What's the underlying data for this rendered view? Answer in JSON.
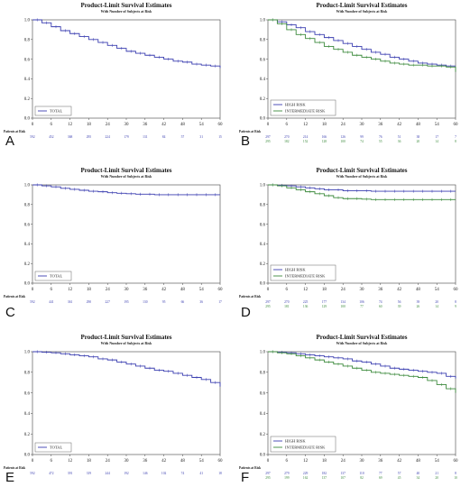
{
  "chart_data": [
    {
      "panel_label": "A",
      "type": "line",
      "title": "Product-Limit Survival Estimates",
      "subtitle": "With Number of Subjects at Risk",
      "x_ticks": [
        "0",
        "6",
        "12",
        "18",
        "24",
        "30",
        "36",
        "42",
        "48",
        "54",
        "60"
      ],
      "y_ticks": [
        "0.0",
        "0.2",
        "0.4",
        "0.6",
        "0.8",
        "1.0"
      ],
      "xlim": [
        0,
        60
      ],
      "ylim": [
        0,
        1
      ],
      "legend": "bottom-left",
      "series": [
        {
          "name": "TOTAL",
          "color": "#3b3fb0",
          "x": [
            0,
            3,
            6,
            9,
            12,
            15,
            18,
            21,
            24,
            27,
            30,
            33,
            36,
            39,
            42,
            45,
            48,
            51,
            54,
            57,
            60
          ],
          "y": [
            1.0,
            0.97,
            0.93,
            0.89,
            0.86,
            0.83,
            0.8,
            0.77,
            0.74,
            0.71,
            0.68,
            0.66,
            0.64,
            0.62,
            0.6,
            0.58,
            0.57,
            0.55,
            0.54,
            0.53,
            0.51
          ]
        }
      ],
      "risk_header": "Patients at Risk",
      "risk_rows": [
        {
          "color": "#3b3fb0",
          "values": [
            "592",
            "452",
            "368",
            "295",
            "224",
            "179",
            "131",
            "84",
            "57",
            "31",
            "15"
          ]
        }
      ]
    },
    {
      "panel_label": "B",
      "type": "line",
      "title": "Product-Limit Survival Estimates",
      "subtitle": "With Number of Subjects at Risk",
      "x_ticks": [
        "0",
        "6",
        "12",
        "18",
        "24",
        "30",
        "36",
        "42",
        "48",
        "54",
        "60"
      ],
      "y_ticks": [
        "0.0",
        "0.2",
        "0.4",
        "0.6",
        "0.8",
        "1.0"
      ],
      "xlim": [
        0,
        60
      ],
      "ylim": [
        0,
        1
      ],
      "legend": "bottom-left",
      "series": [
        {
          "name": "HIGH RISK",
          "color": "#3b3fb0",
          "x": [
            0,
            3,
            6,
            9,
            12,
            15,
            18,
            21,
            24,
            27,
            30,
            33,
            36,
            39,
            42,
            45,
            48,
            51,
            54,
            57,
            60
          ],
          "y": [
            1.0,
            0.98,
            0.95,
            0.92,
            0.88,
            0.85,
            0.82,
            0.79,
            0.76,
            0.73,
            0.7,
            0.67,
            0.65,
            0.62,
            0.6,
            0.58,
            0.56,
            0.55,
            0.54,
            0.53,
            0.53
          ]
        },
        {
          "name": "INTERMEDIATE RISK",
          "color": "#3c8a3c",
          "x": [
            0,
            3,
            6,
            9,
            12,
            15,
            18,
            21,
            24,
            27,
            30,
            33,
            36,
            39,
            42,
            45,
            48,
            51,
            54,
            57,
            60
          ],
          "y": [
            1.0,
            0.96,
            0.9,
            0.85,
            0.81,
            0.77,
            0.73,
            0.7,
            0.67,
            0.64,
            0.62,
            0.6,
            0.58,
            0.56,
            0.55,
            0.54,
            0.54,
            0.53,
            0.53,
            0.52,
            0.47
          ]
        }
      ],
      "risk_header": "Patients at Risk",
      "risk_rows": [
        {
          "color": "#3b3fb0",
          "values": [
            "297",
            "270",
            "214",
            "166",
            "126",
            "99",
            "76",
            "51",
            "38",
            "17",
            "7"
          ]
        },
        {
          "color": "#3c8a3c",
          "values": [
            "295",
            "182",
            "152",
            "128",
            "100",
            "74",
            "55",
            "36",
            "20",
            "14",
            "8"
          ]
        }
      ]
    },
    {
      "panel_label": "C",
      "type": "line",
      "title": "Product-Limit Survival Estimates",
      "subtitle": "With Number of Subjects at Risk",
      "x_ticks": [
        "0",
        "6",
        "12",
        "18",
        "24",
        "30",
        "36",
        "42",
        "48",
        "54",
        "60"
      ],
      "y_ticks": [
        "0.0",
        "0.2",
        "0.4",
        "0.6",
        "0.8",
        "1.0"
      ],
      "xlim": [
        0,
        60
      ],
      "ylim": [
        0,
        1
      ],
      "legend": "bottom-left",
      "series": [
        {
          "name": "TOTAL",
          "color": "#3b3fb0",
          "x": [
            0,
            3,
            6,
            9,
            12,
            15,
            18,
            21,
            24,
            27,
            30,
            33,
            36,
            39,
            42,
            45,
            48,
            51,
            54,
            57,
            60
          ],
          "y": [
            1.0,
            0.99,
            0.98,
            0.965,
            0.955,
            0.945,
            0.935,
            0.93,
            0.92,
            0.915,
            0.91,
            0.905,
            0.905,
            0.9,
            0.9,
            0.9,
            0.9,
            0.9,
            0.9,
            0.9,
            0.9
          ]
        }
      ],
      "risk_header": "Patients at Risk",
      "risk_rows": [
        {
          "color": "#3b3fb0",
          "values": [
            "592",
            "441",
            "361",
            "290",
            "227",
            "195",
            "130",
            "95",
            "66",
            "36",
            "17"
          ]
        }
      ]
    },
    {
      "panel_label": "D",
      "type": "line",
      "title": "Product-Limit Survival Estimates",
      "subtitle": "With Number of Subjects at Risk",
      "x_ticks": [
        "0",
        "6",
        "12",
        "18",
        "24",
        "30",
        "36",
        "42",
        "48",
        "54",
        "60"
      ],
      "y_ticks": [
        "0.0",
        "0.2",
        "0.4",
        "0.6",
        "0.8",
        "1.0"
      ],
      "xlim": [
        0,
        60
      ],
      "ylim": [
        0,
        1
      ],
      "legend": "bottom-left",
      "series": [
        {
          "name": "HIGH RISK",
          "color": "#3b3fb0",
          "x": [
            0,
            3,
            6,
            9,
            12,
            15,
            18,
            21,
            24,
            27,
            30,
            33,
            36,
            39,
            42,
            45,
            48,
            51,
            54,
            57,
            60
          ],
          "y": [
            1.0,
            0.995,
            0.99,
            0.98,
            0.97,
            0.96,
            0.95,
            0.95,
            0.94,
            0.94,
            0.94,
            0.935,
            0.935,
            0.935,
            0.935,
            0.935,
            0.935,
            0.935,
            0.935,
            0.935,
            0.935
          ]
        },
        {
          "name": "INTERMEDIATE RISK",
          "color": "#3c8a3c",
          "x": [
            0,
            3,
            6,
            9,
            12,
            15,
            18,
            21,
            24,
            27,
            30,
            33,
            36,
            39,
            42,
            45,
            48,
            51,
            54,
            57,
            60
          ],
          "y": [
            1.0,
            0.99,
            0.97,
            0.95,
            0.93,
            0.91,
            0.89,
            0.87,
            0.86,
            0.86,
            0.855,
            0.85,
            0.85,
            0.85,
            0.85,
            0.85,
            0.85,
            0.85,
            0.85,
            0.85,
            0.85
          ]
        }
      ],
      "risk_header": "Patients at Risk",
      "risk_rows": [
        {
          "color": "#3b3fb0",
          "values": [
            "297",
            "270",
            "225",
            "177",
            "134",
            "106",
            "74",
            "56",
            "39",
            "20",
            "8"
          ]
        },
        {
          "color": "#3c8a3c",
          "values": [
            "295",
            "181",
            "136",
            "129",
            "100",
            "77",
            "60",
            "39",
            "26",
            "14",
            "9"
          ]
        }
      ]
    },
    {
      "panel_label": "E",
      "type": "line",
      "title": "Product-Limit Survival Estimates",
      "subtitle": "With Number of Subjects at Risk",
      "x_ticks": [
        "0",
        "6",
        "12",
        "18",
        "24",
        "30",
        "36",
        "42",
        "48",
        "54",
        "60"
      ],
      "y_ticks": [
        "0.0",
        "0.2",
        "0.4",
        "0.6",
        "0.8",
        "1.0"
      ],
      "xlim": [
        0,
        60
      ],
      "ylim": [
        0,
        1
      ],
      "legend": "bottom-left",
      "series": [
        {
          "name": "TOTAL",
          "color": "#3b3fb0",
          "x": [
            0,
            3,
            6,
            9,
            12,
            15,
            18,
            21,
            24,
            27,
            30,
            33,
            36,
            39,
            42,
            45,
            48,
            51,
            54,
            57,
            60
          ],
          "y": [
            1.0,
            0.995,
            0.99,
            0.98,
            0.97,
            0.96,
            0.95,
            0.93,
            0.92,
            0.9,
            0.88,
            0.86,
            0.84,
            0.82,
            0.81,
            0.79,
            0.77,
            0.75,
            0.73,
            0.7,
            0.66
          ]
        }
      ],
      "risk_header": "Patients at Risk",
      "risk_rows": [
        {
          "color": "#3b3fb0",
          "values": [
            "592",
            "472",
            "391",
            "319",
            "244",
            "192",
            "146",
            "102",
            "74",
            "41",
            "18"
          ]
        }
      ]
    },
    {
      "panel_label": "F",
      "type": "line",
      "title": "Product-Limit Survival Estimates",
      "subtitle": "With Number of Subjects at Risk",
      "x_ticks": [
        "0",
        "6",
        "12",
        "18",
        "24",
        "30",
        "36",
        "42",
        "48",
        "54",
        "60"
      ],
      "y_ticks": [
        "0.0",
        "0.2",
        "0.4",
        "0.6",
        "0.8",
        "1.0"
      ],
      "xlim": [
        0,
        60
      ],
      "ylim": [
        0,
        1
      ],
      "legend": "bottom-left",
      "series": [
        {
          "name": "HIGH RISK",
          "color": "#3b3fb0",
          "x": [
            0,
            3,
            6,
            9,
            12,
            15,
            18,
            21,
            24,
            27,
            30,
            33,
            36,
            39,
            42,
            45,
            48,
            51,
            54,
            57,
            60
          ],
          "y": [
            1.0,
            0.995,
            0.99,
            0.98,
            0.97,
            0.96,
            0.95,
            0.94,
            0.93,
            0.91,
            0.9,
            0.88,
            0.86,
            0.84,
            0.83,
            0.82,
            0.81,
            0.8,
            0.79,
            0.76,
            0.74
          ]
        },
        {
          "name": "INTERMEDIATE RISK",
          "color": "#3c8a3c",
          "x": [
            0,
            3,
            6,
            9,
            12,
            15,
            18,
            21,
            24,
            27,
            30,
            33,
            36,
            39,
            42,
            45,
            48,
            51,
            54,
            57,
            60
          ],
          "y": [
            1.0,
            0.99,
            0.98,
            0.96,
            0.94,
            0.92,
            0.9,
            0.88,
            0.86,
            0.84,
            0.82,
            0.8,
            0.79,
            0.78,
            0.77,
            0.76,
            0.75,
            0.72,
            0.68,
            0.64,
            0.6
          ]
        }
      ],
      "risk_header": "Patients at Risk",
      "risk_rows": [
        {
          "color": "#3b3fb0",
          "values": [
            "297",
            "279",
            "229",
            "182",
            "137",
            "110",
            "77",
            "57",
            "40",
            "21",
            "8"
          ]
        },
        {
          "color": "#3c8a3c",
          "values": [
            "295",
            "199",
            "162",
            "137",
            "107",
            "82",
            "69",
            "45",
            "34",
            "20",
            "10"
          ]
        }
      ]
    }
  ]
}
